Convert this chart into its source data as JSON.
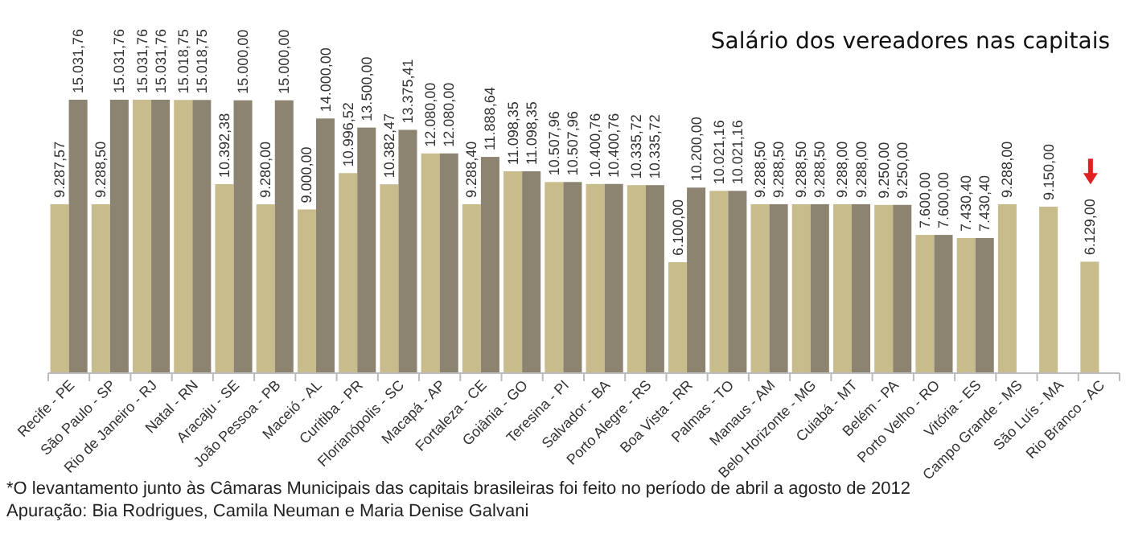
{
  "chart_data": {
    "type": "bar",
    "title": "Salário dos vereadores nas capitais",
    "categories": [
      "Recife - PE",
      "São Paulo - SP",
      "Rio de Janeiro - RJ",
      "Natal - RN",
      "Aracaju - SE",
      "João Pessoa - PB",
      "Maceió - AL",
      "Curitiba - PR",
      "Florianópolis - SC",
      "Macapá - AP",
      "Fortaleza - CE",
      "Goiânia - GO",
      "Teresina - PI",
      "Salvador - BA",
      "Porto Alegre - RS",
      "Boa Vista - RR",
      "Palmas - TO",
      "Manaus - AM",
      "Belo Horizonte - MG",
      "Cuiabá - MT",
      "Belém - PA",
      "Porto Velho - RO",
      "Vitória - ES",
      "Campo Grande - MS",
      "São Luís - MA",
      "Rio Branco - AC"
    ],
    "series": [
      {
        "color": "#c8bb8c",
        "values": [
          9287.57,
          9288.5,
          15031.76,
          15018.75,
          10392.38,
          9280,
          9000,
          10996.52,
          10382.47,
          12080,
          9288.4,
          11098.35,
          10507.96,
          10400.76,
          10335.72,
          6100,
          10021.16,
          9288.5,
          9288.5,
          9288,
          9250,
          7600,
          7430.4,
          9288,
          9150,
          6129
        ],
        "value_labels": [
          "9.287,57",
          "9.288,50",
          "15.031,76",
          "15.018,75",
          "10.392,38",
          "9.280,00",
          "9.000,00",
          "10.996,52",
          "10.382,47",
          "12.080,00",
          "9.288,40",
          "11.098,35",
          "10.507,96",
          "10.400,76",
          "10.335,72",
          "6.100,00",
          "10.021,16",
          "9.288,50",
          "9.288,50",
          "9.288,00",
          "9.250,00",
          "7.600,00",
          "7.430,40",
          "9.288,00",
          "9.150,00",
          "6.129,00"
        ]
      },
      {
        "color": "#8c8470",
        "values": [
          15031.76,
          15031.76,
          15031.76,
          15018.75,
          15000,
          15000,
          14000,
          13500,
          13375.41,
          12080,
          11888.64,
          11098.35,
          10507.96,
          10400.76,
          10335.72,
          10200,
          10021.16,
          9288.5,
          9288.5,
          9288,
          9250,
          7600,
          7430.4,
          null,
          null,
          null
        ],
        "value_labels": [
          "15.031,76",
          "15.031,76",
          "15.031,76",
          "15.018,75",
          "15.000,00",
          "15.000,00",
          "14.000,00",
          "13.500,00",
          "13.375,41",
          "12.080,00",
          "11.888,64",
          "11.098,35",
          "10.507,96",
          "10.400,76",
          "10.335,72",
          "10.200,00",
          "10.021,16",
          "9.288,50",
          "9.288,50",
          "9.288,00",
          "9.250,00",
          "7.600,00",
          "7.430,40",
          null,
          null,
          null
        ]
      }
    ],
    "annotations": [
      "*O levantamento junto às Câmaras Municipais das capitais brasileiras foi feito no período de abril a agosto de 2012",
      "Apuração: Bia Rodrigues, Camila Neuman e Maria Denise Galvani"
    ]
  }
}
